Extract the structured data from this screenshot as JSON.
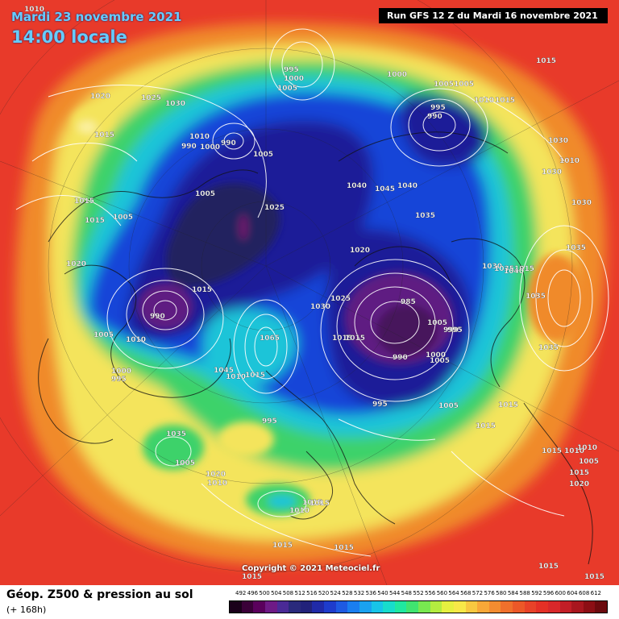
{
  "header": {
    "date": "Mardi 23 novembre 2021",
    "local_time": "14:00 locale",
    "run_info": "Run GFS 12 Z du Mardi 16 novembre 2021"
  },
  "copyright": "Copyright © 2021 Meteociel.fr",
  "footer": {
    "title": "Géop. Z500 & pression au sol",
    "subtitle": "(+ 168h)"
  },
  "colors": {
    "outer": "#e83a2a",
    "orange": "#f08a2a",
    "yellow": "#f4e45c",
    "green": "#3cd26a",
    "cyan": "#1ac4d8",
    "blue": "#1844d8",
    "darkblue": "#1c1c98",
    "navy": "#24205e",
    "purple": "#5e1a82"
  },
  "legend": {
    "values": [
      "492",
      "496",
      "500",
      "504",
      "508",
      "512",
      "516",
      "520",
      "524",
      "528",
      "532",
      "536",
      "540",
      "544",
      "548",
      "552",
      "556",
      "560",
      "564",
      "568",
      "572",
      "576",
      "580",
      "584",
      "588",
      "592",
      "596",
      "600",
      "604",
      "608",
      "612"
    ],
    "colors": [
      "#1a001a",
      "#3a0038",
      "#5a005c",
      "#6e1a86",
      "#4a2a96",
      "#2a2a7c",
      "#22227a",
      "#202aa8",
      "#1e3ccc",
      "#1e5ae2",
      "#1a7ef0",
      "#1aa2f0",
      "#18c4e8",
      "#18dccc",
      "#20e8a0",
      "#40e470",
      "#78e850",
      "#b4ec40",
      "#e6f040",
      "#f8e848",
      "#f8c840",
      "#f8a838",
      "#f48c30",
      "#f0702c",
      "#ec5828",
      "#e84228",
      "#e43026",
      "#d8282a",
      "#c21e26",
      "#a8161e",
      "#8c0e14",
      "#6c0a0e"
    ]
  },
  "pressure_labels": [
    "1010",
    "1020",
    "1025",
    "1030",
    "1015",
    "995",
    "1000",
    "1005",
    "1010",
    "1015",
    "990",
    "1000",
    "1005",
    "1005",
    "995",
    "990",
    "1010",
    "1015",
    "1015",
    "1030",
    "1030",
    "1010",
    "1000",
    "990",
    "1005",
    "1005",
    "1015",
    "1005",
    "1025",
    "1040",
    "1045",
    "1040",
    "1035",
    "1020",
    "1015",
    "1030",
    "1030",
    "1035",
    "1015",
    "1020",
    "1005",
    "1010",
    "1000",
    "995",
    "990",
    "1030",
    "1025",
    "985",
    "1035",
    "1040",
    "1035",
    "1035",
    "1015",
    "1015",
    "1065",
    "1045",
    "1015",
    "1010",
    "1005",
    "990",
    "995",
    "1015",
    "1015",
    "1000",
    "1005",
    "990",
    "995",
    "995",
    "1035",
    "1005",
    "1005",
    "1020",
    "1015",
    "1010",
    "1010",
    "1010",
    "1015",
    "1015",
    "1015",
    "1015",
    "1015",
    "1015",
    "1015",
    "1020",
    "1015",
    "1010",
    "1005",
    "1005"
  ]
}
